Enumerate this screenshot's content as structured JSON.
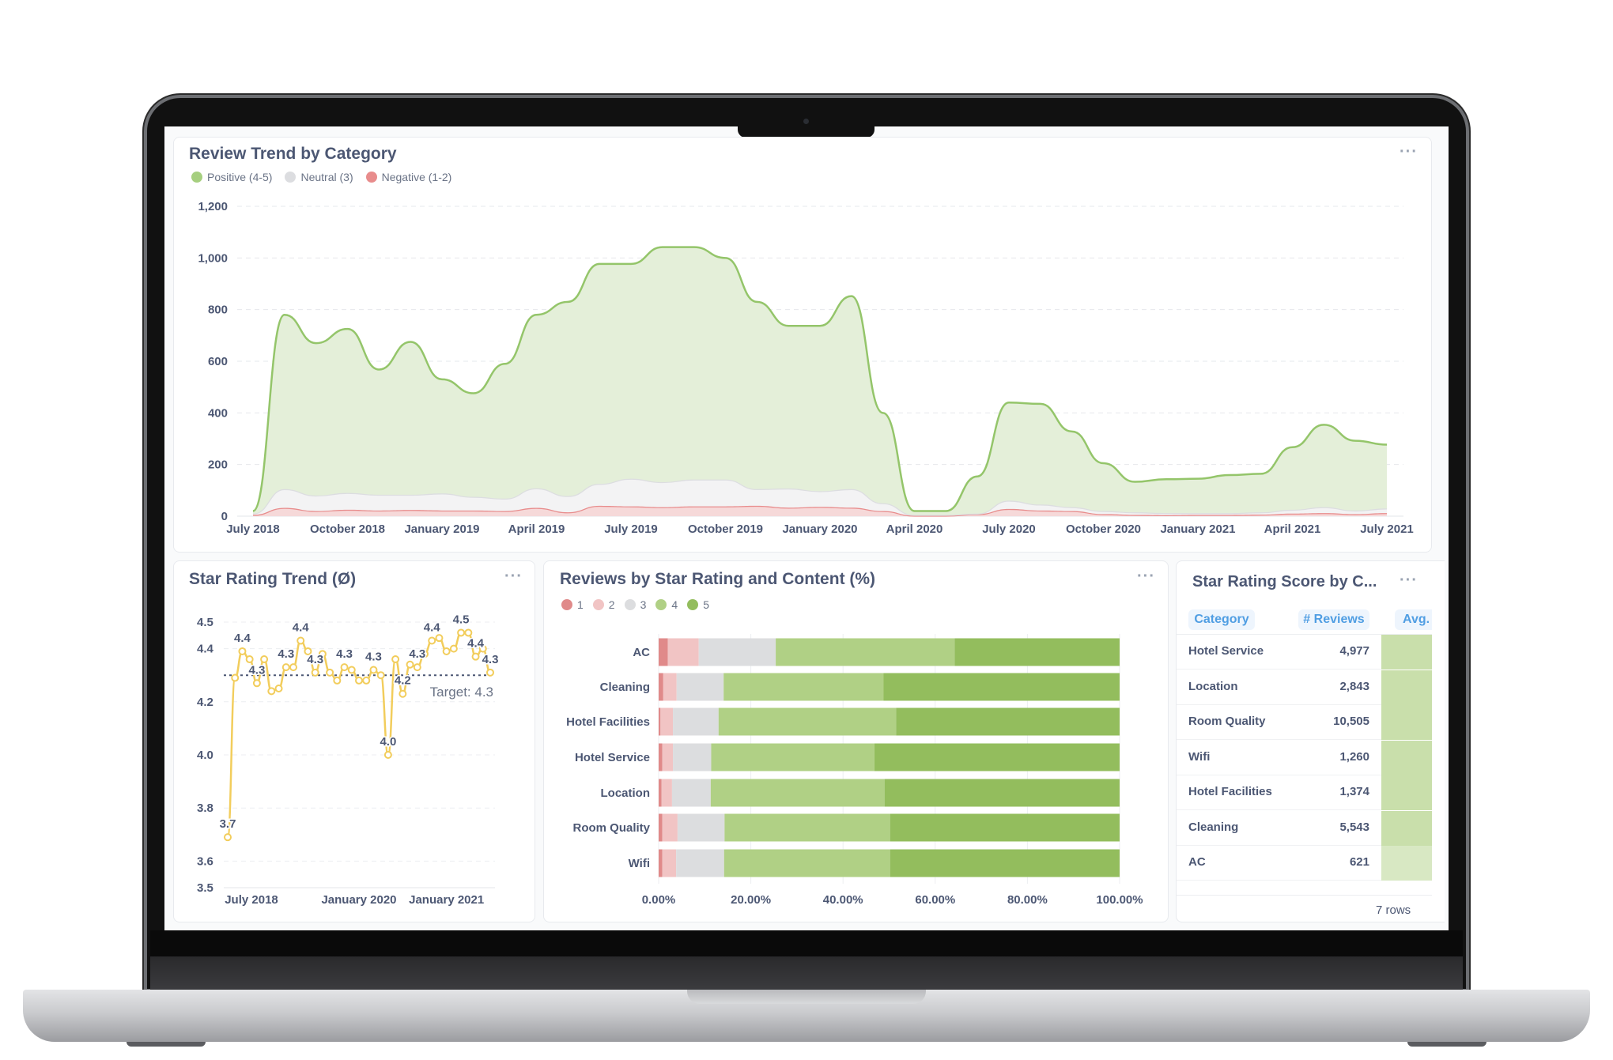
{
  "review_trend": {
    "title": "Review Trend by Category",
    "menu": "···",
    "legend": [
      {
        "label": "Positive (4-5)",
        "color": "#a6cf7f"
      },
      {
        "label": "Neutral (3)",
        "color": "#dcdde0"
      },
      {
        "label": "Negative (1-2)",
        "color": "#e88c8c"
      }
    ]
  },
  "star_trend": {
    "title": "Star Rating Trend (Ø)",
    "menu": "···"
  },
  "star_content": {
    "title": "Reviews by Star Rating and Content (%)",
    "menu": "···",
    "legend": [
      {
        "label": "1",
        "color": "#e08a8a"
      },
      {
        "label": "2",
        "color": "#f1c4c4"
      },
      {
        "label": "3",
        "color": "#dcdddf"
      },
      {
        "label": "4",
        "color": "#b0d085"
      },
      {
        "label": "5",
        "color": "#93bd5d"
      }
    ]
  },
  "score_table": {
    "title": "Star Rating Score by C...",
    "menu": "···",
    "columns": [
      "Category",
      "# Reviews",
      "Avg. R"
    ],
    "rows": [
      {
        "category": "Hotel Service",
        "reviews": "4,977",
        "avg_color": "#c9dfab"
      },
      {
        "category": "Location",
        "reviews": "2,843",
        "avg_color": "#c9dfab"
      },
      {
        "category": "Room Quality",
        "reviews": "10,505",
        "avg_color": "#c9dfab"
      },
      {
        "category": "Wifi",
        "reviews": "1,260",
        "avg_color": "#c9dfab"
      },
      {
        "category": "Hotel Facilities",
        "reviews": "1,374",
        "avg_color": "#c9dfab"
      },
      {
        "category": "Cleaning",
        "reviews": "5,543",
        "avg_color": "#c9dfab"
      },
      {
        "category": "AC",
        "reviews": "621",
        "avg_color": "#d8e8c3"
      }
    ],
    "footer": "7 rows"
  },
  "chart_data": [
    {
      "type": "area",
      "stacked": true,
      "title": "Review Trend by Category",
      "x": [
        "2018-07",
        "2018-08",
        "2018-09",
        "2018-10",
        "2018-11",
        "2018-12",
        "2019-01",
        "2019-02",
        "2019-03",
        "2019-04",
        "2019-05",
        "2019-06",
        "2019-07",
        "2019-08",
        "2019-09",
        "2019-10",
        "2019-11",
        "2019-12",
        "2020-01",
        "2020-02",
        "2020-03",
        "2020-04",
        "2020-05",
        "2020-06",
        "2020-07",
        "2020-08",
        "2020-09",
        "2020-10",
        "2020-11",
        "2020-12",
        "2021-01",
        "2021-02",
        "2021-03",
        "2021-04",
        "2021-05",
        "2021-06",
        "2021-07"
      ],
      "series": [
        {
          "name": "Negative (1-2)",
          "color": "#e88c8c",
          "fill": "#f6d9d9",
          "values": [
            5,
            32,
            20,
            25,
            22,
            24,
            22,
            22,
            20,
            32,
            15,
            40,
            38,
            35,
            38,
            38,
            40,
            33,
            36,
            33,
            20,
            2,
            2,
            8,
            28,
            22,
            20,
            8,
            5,
            4,
            5,
            5,
            6,
            10,
            12,
            8,
            12
          ]
        },
        {
          "name": "Neutral (3)",
          "color": "#dcdde0",
          "fill": "#f3f3f4",
          "values": [
            5,
            73,
            60,
            65,
            61,
            59,
            66,
            53,
            48,
            76,
            63,
            85,
            107,
            97,
            104,
            104,
            65,
            74,
            61,
            72,
            30,
            3,
            3,
            2,
            32,
            23,
            15,
            12,
            10,
            8,
            7,
            7,
            9,
            15,
            23,
            14,
            18
          ]
        },
        {
          "name": "Positive (4-5)",
          "color": "#94c56a",
          "fill": "#e4efd9",
          "values": [
            10,
            675,
            590,
            635,
            485,
            592,
            442,
            401,
            522,
            672,
            752,
            852,
            832,
            910,
            900,
            858,
            725,
            630,
            640,
            747,
            350,
            15,
            15,
            144,
            380,
            390,
            293,
            185,
            118,
            131,
            133,
            147,
            149,
            242,
            319,
            270,
            247
          ]
        }
      ],
      "ylim": [
        0,
        1200
      ],
      "yticks": [
        "0",
        "200",
        "400",
        "600",
        "800",
        "1,000",
        "1,200"
      ],
      "xticks": [
        {
          "index": 0,
          "label": "July 2018"
        },
        {
          "index": 3,
          "label": "October 2018"
        },
        {
          "index": 6,
          "label": "January 2019"
        },
        {
          "index": 9,
          "label": "April 2019"
        },
        {
          "index": 12,
          "label": "July 2019"
        },
        {
          "index": 15,
          "label": "October 2019"
        },
        {
          "index": 18,
          "label": "January 2020"
        },
        {
          "index": 21,
          "label": "April 2020"
        },
        {
          "index": 24,
          "label": "July 2020"
        },
        {
          "index": 27,
          "label": "October 2020"
        },
        {
          "index": 30,
          "label": "January 2021"
        },
        {
          "index": 33,
          "label": "April 2021"
        },
        {
          "index": 36,
          "label": "July 2021"
        }
      ],
      "grid": true,
      "legend": "top-left"
    },
    {
      "type": "line",
      "title": "Star Rating Trend (Ø)",
      "color": "#f2cd5c",
      "values": [
        3.69,
        4.29,
        4.39,
        4.36,
        4.27,
        4.36,
        4.24,
        4.25,
        4.33,
        4.33,
        4.43,
        4.39,
        4.31,
        4.38,
        4.31,
        4.28,
        4.33,
        4.32,
        4.28,
        4.28,
        4.32,
        4.3,
        4.0,
        4.36,
        4.23,
        4.34,
        4.33,
        4.38,
        4.43,
        4.44,
        4.39,
        4.4,
        4.46,
        4.46,
        4.37,
        4.4,
        4.31
      ],
      "point_labels": [
        {
          "index": 0,
          "label": "3.7"
        },
        {
          "index": 2,
          "label": "4.4"
        },
        {
          "index": 4,
          "label": "4.3"
        },
        {
          "index": 8,
          "label": "4.3"
        },
        {
          "index": 10,
          "label": "4.4"
        },
        {
          "index": 12,
          "label": "4.3"
        },
        {
          "index": 16,
          "label": "4.3"
        },
        {
          "index": 20,
          "label": "4.3"
        },
        {
          "index": 22,
          "label": "4.0"
        },
        {
          "index": 24,
          "label": "4.2"
        },
        {
          "index": 26,
          "label": "4.3"
        },
        {
          "index": 28,
          "label": "4.4"
        },
        {
          "index": 32,
          "label": "4.5"
        },
        {
          "index": 34,
          "label": "4.4"
        },
        {
          "index": 36,
          "label": "4.3"
        }
      ],
      "target": {
        "value": 4.3,
        "label": "Target: 4.3"
      },
      "ylim": [
        3.5,
        4.5
      ],
      "yticks": [
        3.5,
        3.6,
        3.8,
        4.0,
        4.2,
        4.4,
        4.5
      ],
      "ytick_labels": [
        "3.5",
        "3.6",
        "3.8",
        "4.0",
        "4.2",
        "4.4",
        "4.5"
      ],
      "xticks": [
        {
          "index": 0,
          "label": "July 2018"
        },
        {
          "index": 18,
          "label": "January 2020"
        },
        {
          "index": 30,
          "label": "January 2021"
        }
      ],
      "grid": true
    },
    {
      "type": "bar",
      "orientation": "horizontal",
      "stacked": "percent",
      "title": "Reviews by Star Rating and Content (%)",
      "categories": [
        "AC",
        "Cleaning",
        "Hotel Facilities",
        "Hotel Service",
        "Location",
        "Room Quality",
        "Wifi"
      ],
      "series": [
        {
          "name": "1",
          "values": [
            2.0,
            1.0,
            0.4,
            0.8,
            0.6,
            0.8,
            0.8
          ]
        },
        {
          "name": "2",
          "values": [
            6.7,
            2.9,
            2.7,
            2.3,
            2.3,
            3.3,
            3.0
          ]
        },
        {
          "name": "3",
          "values": [
            16.7,
            10.2,
            9.9,
            8.3,
            8.4,
            10.2,
            10.4
          ]
        },
        {
          "name": "4",
          "values": [
            38.8,
            34.7,
            38.5,
            35.4,
            37.7,
            35.9,
            36.0
          ]
        },
        {
          "name": "5",
          "values": [
            35.8,
            51.2,
            48.5,
            53.2,
            51.0,
            49.8,
            49.8
          ]
        }
      ],
      "xlim": [
        0,
        100
      ],
      "xtick_labels": [
        "0.00%",
        "20.00%",
        "40.00%",
        "60.00%",
        "80.00%",
        "100.00%"
      ],
      "legend": "top-left"
    }
  ]
}
